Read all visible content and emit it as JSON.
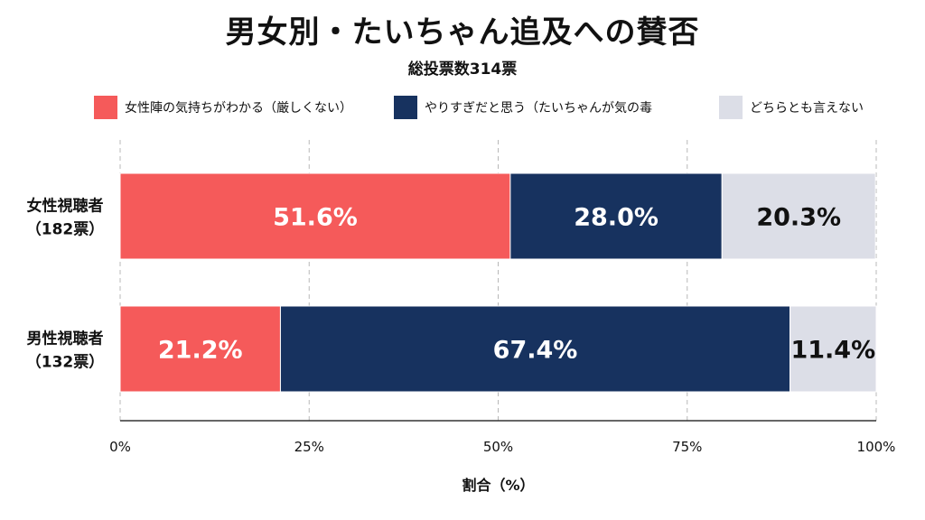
{
  "title": "男女別・たいちゃん追及への賛否",
  "subtitle": "総投票数314票",
  "legend": [
    {
      "label": "女性陣の気持ちがわかる（厳しくない）",
      "color": "#f55a5a"
    },
    {
      "label": "やりすぎだと思う（たいちゃんが気の毒",
      "color": "#17325f"
    },
    {
      "label": "どちらとも言えない",
      "color": "#dcdee7"
    }
  ],
  "chart_data": {
    "type": "bar",
    "orientation": "horizontal",
    "stacked": true,
    "categories": [
      {
        "name": "女性視聴者",
        "sub": "（182票）"
      },
      {
        "name": "男性視聴者",
        "sub": "（132票）"
      }
    ],
    "series": [
      {
        "name": "女性陣の気持ちがわかる（厳しくない）",
        "color": "#f55a5a",
        "text_color": "#ffffff",
        "values": [
          51.6,
          21.2
        ]
      },
      {
        "name": "やりすぎだと思う（たいちゃんが気の毒",
        "color": "#17325f",
        "text_color": "#ffffff",
        "values": [
          28.0,
          67.4
        ]
      },
      {
        "name": "どちらとも言えない",
        "color": "#dcdee7",
        "text_color": "#111111",
        "values": [
          20.3,
          11.4
        ]
      }
    ],
    "value_labels": [
      [
        "51.6%",
        "21.2%"
      ],
      [
        "28.0%",
        "67.4%"
      ],
      [
        "20.3%",
        "11.4%"
      ]
    ],
    "xlim": [
      0,
      100
    ],
    "xticks": [
      "0%",
      "25%",
      "50%",
      "75%",
      "100%"
    ],
    "xlabel": "割合（%）",
    "grid": true,
    "legend_position": "top"
  }
}
